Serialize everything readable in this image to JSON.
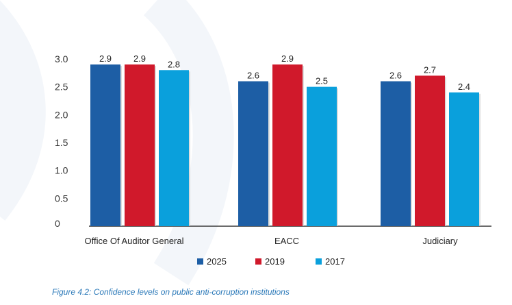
{
  "chart_data": {
    "type": "bar",
    "categories": [
      "Office Of Auditor General",
      "EACC",
      "Judiciary"
    ],
    "series": [
      {
        "name": "2025",
        "color": "#1d5ea5",
        "values": [
          2.9,
          2.6,
          2.6
        ]
      },
      {
        "name": "2019",
        "color": "#d0192b",
        "values": [
          2.9,
          2.9,
          2.7
        ]
      },
      {
        "name": "2017",
        "color": "#0aa0dc",
        "values": [
          2.8,
          2.5,
          2.4
        ]
      }
    ],
    "ylim": [
      0,
      3.0
    ],
    "yticks": [
      "0",
      "0.5",
      "1.0",
      "1.5",
      "2.0",
      "2.5",
      "3.0"
    ],
    "grid": false,
    "legend_position": "bottom-center"
  },
  "caption": "Figure 4.2: Confidence levels on public anti-corruption institutions"
}
